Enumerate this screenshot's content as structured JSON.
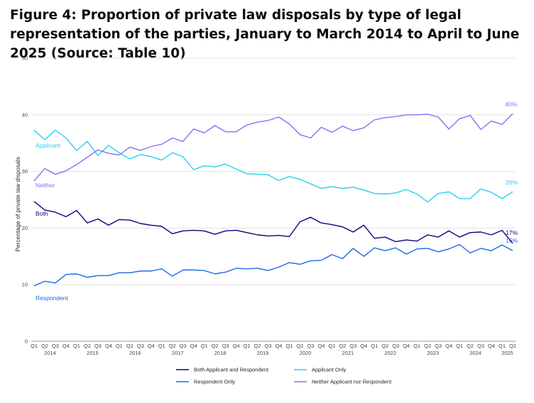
{
  "title": "Figure 4: Proportion of private law disposals by type of legal representation of the parties, January to March 2014 to April to June 2025 (Source: Table 10)",
  "chart_data": {
    "type": "line",
    "ylabel": "Percentage of private law disposals",
    "ylim": [
      0,
      50
    ],
    "yticks": [
      0,
      10,
      20,
      30,
      40,
      50
    ],
    "grid": "horizontal",
    "legend_position": "bottom",
    "quarters": [
      "Q1",
      "Q2",
      "Q3",
      "Q4",
      "Q1",
      "Q2",
      "Q3",
      "Q4",
      "Q1",
      "Q2",
      "Q3",
      "Q4",
      "Q1",
      "Q2",
      "Q3",
      "Q4",
      "Q1",
      "Q2",
      "Q3",
      "Q4",
      "Q1",
      "Q2",
      "Q3",
      "Q4",
      "Q1",
      "Q2",
      "Q3",
      "Q4",
      "Q1",
      "Q2",
      "Q3",
      "Q4",
      "Q1",
      "Q2",
      "Q3",
      "Q4",
      "Q1",
      "Q2",
      "Q3",
      "Q4",
      "Q1",
      "Q2",
      "Q3",
      "Q4",
      "Q1",
      "Q2"
    ],
    "years": [
      "2014",
      "2015",
      "2016",
      "2017",
      "2018",
      "2019",
      "2020",
      "2021",
      "2022",
      "2023",
      "2024",
      "2025"
    ],
    "series": [
      {
        "name": "Both Applicant and Respondent",
        "inline_label": "Both",
        "end_label": "17%",
        "color": "#12017d",
        "values": [
          24.7,
          23.2,
          22.8,
          22.0,
          23.1,
          20.9,
          21.6,
          20.5,
          21.5,
          21.4,
          20.8,
          20.5,
          20.3,
          19.0,
          19.5,
          19.6,
          19.5,
          18.9,
          19.5,
          19.6,
          19.2,
          18.8,
          18.6,
          18.7,
          18.5,
          21.1,
          21.9,
          20.9,
          20.6,
          20.2,
          19.3,
          20.5,
          18.2,
          18.4,
          17.6,
          17.9,
          17.7,
          18.8,
          18.4,
          19.5,
          18.4,
          19.2,
          19.3,
          18.8,
          19.6,
          17.3
        ]
      },
      {
        "name": "Applicant Only",
        "inline_label": "Applicant",
        "end_label": "26%",
        "color": "#28d0f1",
        "values": [
          37.3,
          35.6,
          37.3,
          35.9,
          33.7,
          35.3,
          32.8,
          34.6,
          33.3,
          32.2,
          33.0,
          32.6,
          32.0,
          33.3,
          32.6,
          30.3,
          31.0,
          30.8,
          31.3,
          30.4,
          29.6,
          29.5,
          29.4,
          28.4,
          29.1,
          28.6,
          27.8,
          27.0,
          27.3,
          27.0,
          27.2,
          26.7,
          26.1,
          26.0,
          26.2,
          26.8,
          26.0,
          24.6,
          26.1,
          26.4,
          25.2,
          25.2,
          26.9,
          26.3,
          25.2,
          26.4
        ]
      },
      {
        "name": "Respondent Only",
        "inline_label": "Respondent",
        "end_label": "16%",
        "color": "#1d6ae5",
        "values": [
          9.8,
          10.6,
          10.3,
          11.8,
          11.9,
          11.3,
          11.6,
          11.6,
          12.1,
          12.1,
          12.4,
          12.4,
          12.8,
          11.5,
          12.6,
          12.6,
          12.5,
          11.9,
          12.2,
          12.9,
          12.8,
          12.9,
          12.5,
          13.1,
          13.9,
          13.6,
          14.2,
          14.3,
          15.3,
          14.6,
          16.4,
          15.0,
          16.5,
          16.0,
          16.5,
          15.4,
          16.3,
          16.4,
          15.8,
          16.3,
          17.1,
          15.6,
          16.4,
          16.0,
          17.0,
          16.0
        ]
      },
      {
        "name": "Neither Applicant nor Respondent",
        "inline_label": "Neither",
        "end_label": "40%",
        "color": "#8570f3",
        "values": [
          28.3,
          30.5,
          29.5,
          30.1,
          31.2,
          32.5,
          33.8,
          33.2,
          32.9,
          34.3,
          33.7,
          34.4,
          34.8,
          35.9,
          35.3,
          37.5,
          36.8,
          38.1,
          37.0,
          37.0,
          38.2,
          38.7,
          39.0,
          39.6,
          38.4,
          36.5,
          35.9,
          37.8,
          36.9,
          38.0,
          37.2,
          37.7,
          39.1,
          39.5,
          39.7,
          40.0,
          40.0,
          40.1,
          39.6,
          37.5,
          39.3,
          39.9,
          37.4,
          38.9,
          38.3,
          40.2
        ]
      }
    ]
  }
}
